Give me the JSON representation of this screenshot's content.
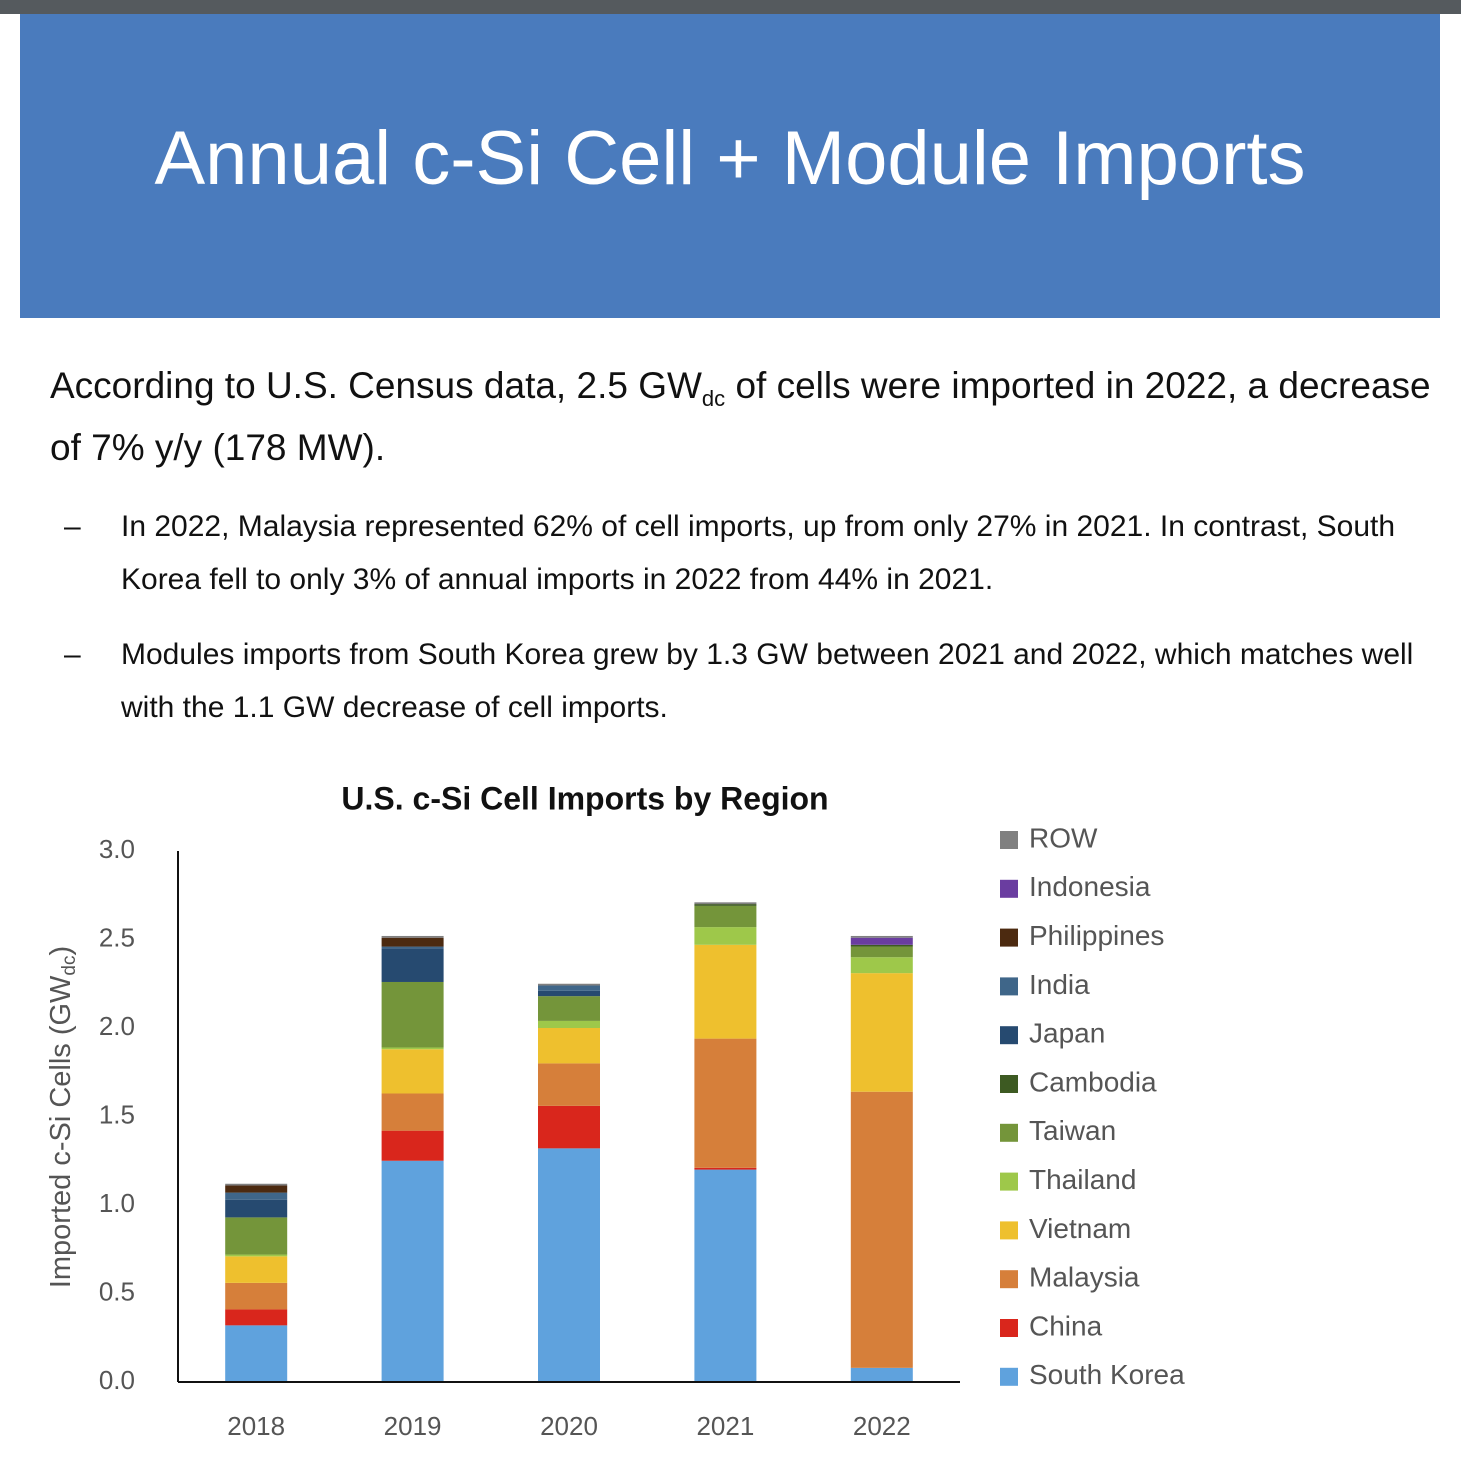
{
  "slide": {
    "title": "Annual c-Si Cell + Module Imports",
    "intro": [
      "According to U.S. Census data, 2.5 GW",
      "dc",
      " of cells were imported in 2022, a decrease of 7% y/y (178 MW)."
    ],
    "bullets": [
      "In 2022, Malaysia represented 62% of cell imports, up from only 27% in 2021. In contrast, South Korea fell to only 3% of annual imports in 2022 from 44% in 2021.",
      "Modules imports from South Korea grew by 1.3 GW between 2021 and 2022, which matches well with the 1.1 GW decrease of cell imports."
    ],
    "bullet_marker": "–"
  },
  "chart_data": {
    "type": "bar",
    "stacked": true,
    "title": "U.S. c-Si Cell Imports by Region",
    "y_label": [
      "Imported c-Si Cells (GW",
      "dc",
      ")"
    ],
    "categories": [
      "2018",
      "2019",
      "2020",
      "2021",
      "2022"
    ],
    "series": [
      {
        "name": "South Korea",
        "color": "#5fa2dd",
        "values": [
          0.32,
          1.25,
          1.32,
          1.2,
          0.08
        ]
      },
      {
        "name": "China",
        "color": "#d9261c",
        "values": [
          0.09,
          0.17,
          0.24,
          0.01,
          0
        ]
      },
      {
        "name": "Malaysia",
        "color": "#d67f3a",
        "values": [
          0.15,
          0.21,
          0.24,
          0.73,
          1.56
        ]
      },
      {
        "name": "Vietnam",
        "color": "#eec02e",
        "values": [
          0.15,
          0.25,
          0.2,
          0.53,
          0.67
        ]
      },
      {
        "name": "Thailand",
        "color": "#9ec84a",
        "values": [
          0.01,
          0.01,
          0.04,
          0.1,
          0.09
        ]
      },
      {
        "name": "Taiwan",
        "color": "#74953a",
        "values": [
          0.21,
          0.37,
          0.14,
          0.12,
          0.06
        ]
      },
      {
        "name": "Cambodia",
        "color": "#3d5a22",
        "values": [
          0,
          0,
          0,
          0.01,
          0.01
        ]
      },
      {
        "name": "Japan",
        "color": "#264a70",
        "values": [
          0.1,
          0.19,
          0.03,
          0,
          0
        ]
      },
      {
        "name": "India",
        "color": "#3f6689",
        "values": [
          0.04,
          0.01,
          0.03,
          0,
          0
        ]
      },
      {
        "name": "Philippines",
        "color": "#4c2a10",
        "values": [
          0.04,
          0.05,
          0,
          0,
          0
        ]
      },
      {
        "name": "Indonesia",
        "color": "#6a3da0",
        "values": [
          0,
          0,
          0,
          0,
          0.04
        ]
      },
      {
        "name": "ROW",
        "color": "#808080",
        "values": [
          0.01,
          0.01,
          0.01,
          0.01,
          0.01
        ]
      }
    ],
    "ylim": [
      0,
      3
    ],
    "yticks": [
      {
        "value": 0,
        "label": "0.0"
      },
      0.5,
      {
        "value": 1,
        "label": "1.0"
      },
      1.5,
      {
        "value": 2,
        "label": "2.0"
      },
      2.5,
      {
        "value": 3,
        "label": "3.0"
      }
    ],
    "grid": false,
    "legend": "right"
  }
}
